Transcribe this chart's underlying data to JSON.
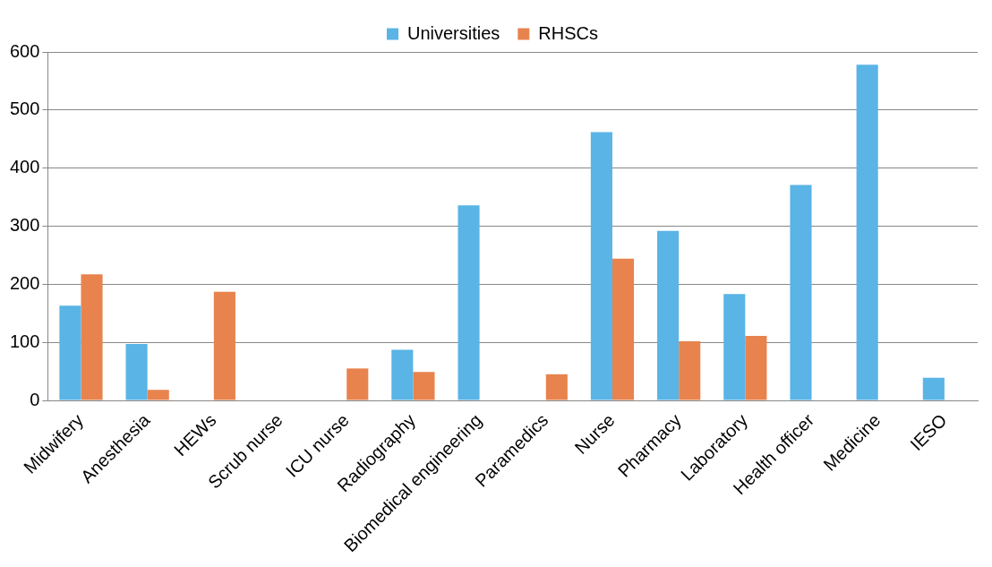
{
  "chart_data": {
    "type": "bar",
    "categories": [
      "Midwifery",
      "Anesthesia",
      "HEWs",
      "Scrub nurse",
      "ICU nurse",
      "Radiography",
      "Biomedical engineering",
      "Paramedics",
      "Nurse",
      "Pharmacy",
      "Laboratory",
      "Health officer",
      "Medicine",
      "IESO"
    ],
    "series": [
      {
        "name": "Universities",
        "color": "#5ab4e5",
        "values": [
          163,
          97,
          0,
          0,
          0,
          87,
          336,
          0,
          462,
          292,
          183,
          371,
          578,
          39
        ]
      },
      {
        "name": "RHSCs",
        "color": "#e8834e",
        "values": [
          217,
          18,
          187,
          0,
          55,
          49,
          0,
          45,
          244,
          102,
          111,
          0,
          0,
          0
        ]
      }
    ],
    "ylim": [
      0,
      600
    ],
    "yticks": [
      0,
      100,
      200,
      300,
      400,
      500,
      600
    ],
    "grid": "y",
    "legend": "top"
  }
}
